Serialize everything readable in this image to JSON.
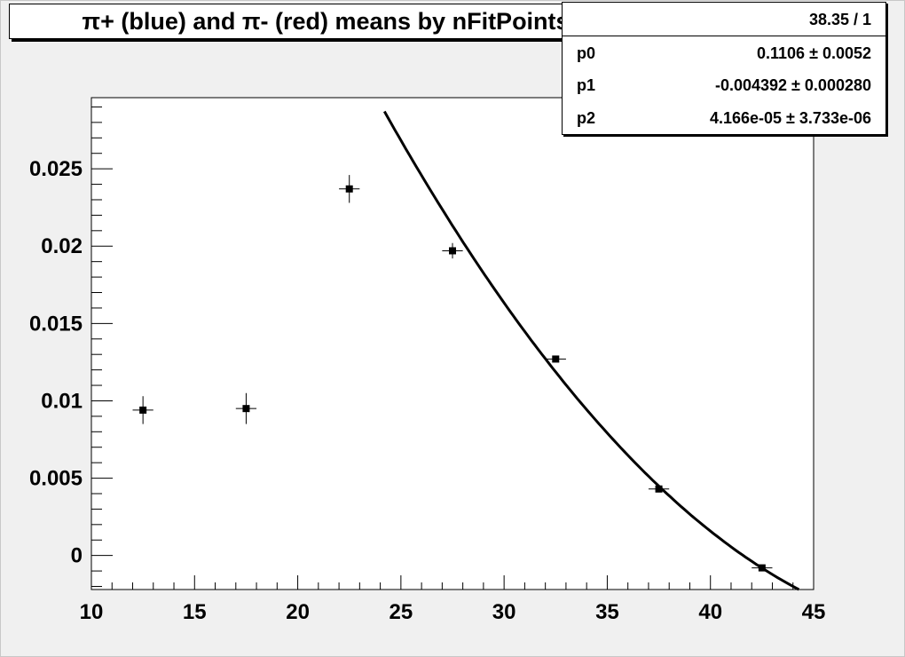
{
  "title": "π+ (blue) and π- (red) means by nFitPoints",
  "stats": {
    "chi2_ndf": "38.35 / 1",
    "params": [
      {
        "name": "p0",
        "value": "0.1106 ± 0.0052"
      },
      {
        "name": "p1",
        "value": "-0.004392 ± 0.000280"
      },
      {
        "name": "p2",
        "value": "4.166e-05 ± 3.733e-06"
      }
    ]
  },
  "chart_data": {
    "type": "scatter",
    "title": "π+ (blue) and π- (red) means by nFitPoints",
    "xlabel": "",
    "ylabel": "",
    "xlim": [
      10,
      45
    ],
    "ylim": [
      -0.0022,
      0.0296
    ],
    "xticks": [
      "10",
      "15",
      "20",
      "25",
      "30",
      "35",
      "40",
      "45"
    ],
    "yticks": [
      "0",
      "0.005",
      "0.01",
      "0.015",
      "0.02",
      "0.025"
    ],
    "grid": false,
    "series": [
      {
        "marker": "square",
        "color": "#000000",
        "x": [
          12.5,
          17.5,
          22.5,
          27.5,
          32.5,
          37.5,
          42.5
        ],
        "y": [
          0.0094,
          0.0095,
          0.0237,
          0.0197,
          0.0127,
          0.0043,
          -0.0008
        ],
        "xerr": [
          0.5,
          0.5,
          0.5,
          0.5,
          0.5,
          0.5,
          0.5
        ],
        "yerr": [
          0.0009,
          0.001,
          0.0009,
          0.0005,
          0.0002,
          0.0002,
          0.0002
        ]
      }
    ],
    "fit": {
      "type": "pol2",
      "color": "#000000",
      "p0": 0.1106,
      "p1": -0.004392,
      "p2": 4.166e-05,
      "xrange": [
        24.2,
        45
      ]
    }
  }
}
